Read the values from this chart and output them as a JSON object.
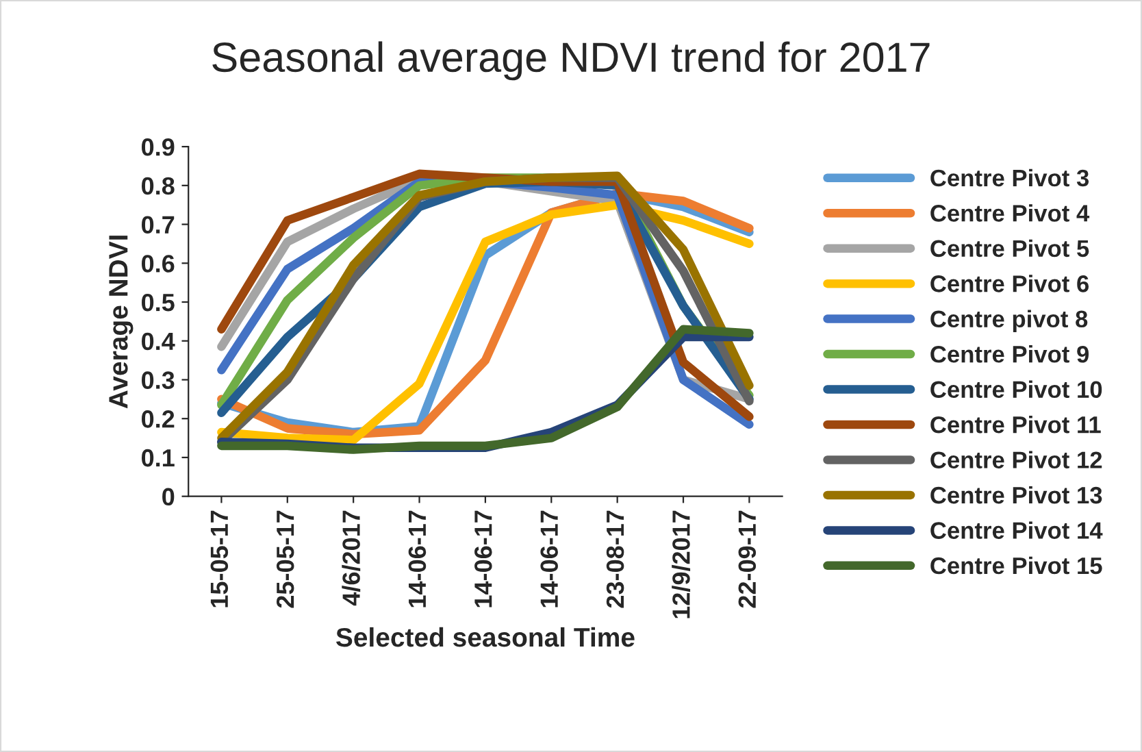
{
  "chart_data": {
    "type": "line",
    "title": "Seasonal average NDVI trend for 2017",
    "xlabel": "Selected seasonal Time",
    "ylabel": "Average NDVI",
    "categories": [
      "15-05-17",
      "25-05-17",
      "4/6/2017",
      "14-06-17",
      "14-06-17",
      "14-06-17",
      "23-08-17",
      "12/9/2017",
      "22-09-17"
    ],
    "ylim": [
      0,
      0.9
    ],
    "yticks": [
      0,
      0.1,
      0.2,
      0.3,
      0.4,
      0.5,
      0.6,
      0.7,
      0.8,
      0.9
    ],
    "grid": false,
    "legend": "right",
    "marker": "none",
    "line_style": "solid",
    "series": [
      {
        "name": "Centre Pivot 3",
        "color": "#5b9bd5",
        "values": [
          0.24,
          0.19,
          0.165,
          0.18,
          0.62,
          0.73,
          0.78,
          0.745,
          0.68
        ]
      },
      {
        "name": "Centre Pivot 4",
        "color": "#ed7d31",
        "values": [
          0.25,
          0.175,
          0.16,
          0.17,
          0.35,
          0.73,
          0.78,
          0.76,
          0.69
        ]
      },
      {
        "name": "Centre Pivot 5",
        "color": "#a5a5a5",
        "values": [
          0.385,
          0.655,
          0.74,
          0.815,
          0.81,
          0.785,
          0.76,
          0.3,
          0.25
        ]
      },
      {
        "name": "Centre Pivot 6",
        "color": "#ffc000",
        "values": [
          0.165,
          0.15,
          0.145,
          0.29,
          0.655,
          0.725,
          0.75,
          0.71,
          0.65
        ]
      },
      {
        "name": "Centre pivot 8",
        "color": "#4472c4",
        "values": [
          0.325,
          0.585,
          0.69,
          0.81,
          0.81,
          0.795,
          0.775,
          0.3,
          0.185
        ]
      },
      {
        "name": "Centre Pivot 9",
        "color": "#70ad47",
        "values": [
          0.235,
          0.505,
          0.665,
          0.8,
          0.82,
          0.82,
          0.82,
          0.49,
          0.26
        ]
      },
      {
        "name": "Centre Pivot 10",
        "color": "#255e91",
        "values": [
          0.215,
          0.41,
          0.56,
          0.745,
          0.805,
          0.81,
          0.8,
          0.49,
          0.25
        ]
      },
      {
        "name": "Centre Pivot 11",
        "color": "#9e480e",
        "values": [
          0.43,
          0.71,
          0.77,
          0.83,
          0.82,
          0.81,
          0.81,
          0.345,
          0.205
        ]
      },
      {
        "name": "Centre Pivot 12",
        "color": "#636363",
        "values": [
          0.14,
          0.3,
          0.56,
          0.77,
          0.81,
          0.82,
          0.82,
          0.58,
          0.245
        ]
      },
      {
        "name": "Centre Pivot 13",
        "color": "#997300",
        "values": [
          0.15,
          0.32,
          0.595,
          0.775,
          0.81,
          0.82,
          0.825,
          0.635,
          0.285
        ]
      },
      {
        "name": "Centre Pivot 14",
        "color": "#264478",
        "values": [
          0.14,
          0.135,
          0.125,
          0.125,
          0.125,
          0.165,
          0.235,
          0.41,
          0.41
        ]
      },
      {
        "name": "Centre Pivot 15",
        "color": "#43682b",
        "values": [
          0.13,
          0.13,
          0.12,
          0.13,
          0.13,
          0.15,
          0.23,
          0.43,
          0.42
        ]
      }
    ]
  }
}
